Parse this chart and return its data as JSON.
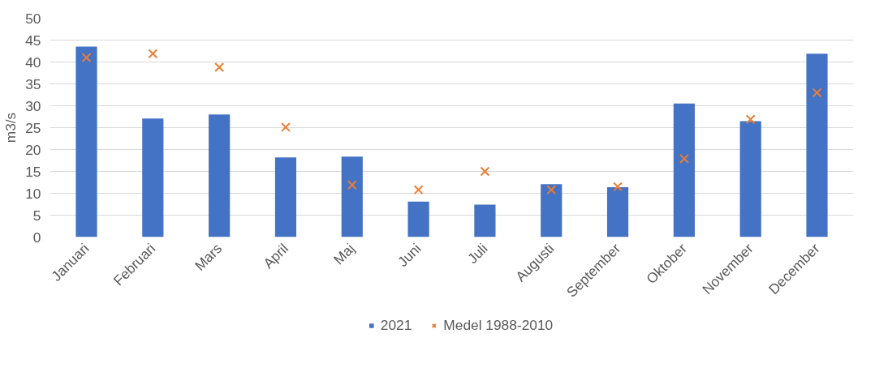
{
  "chart_data": {
    "type": "bar",
    "ylabel": "m3/s",
    "categories": [
      "Januari",
      "Februari",
      "Mars",
      "April",
      "Maj",
      "Juni",
      "Juli",
      "Augusti",
      "September",
      "Oktober",
      "November",
      "December"
    ],
    "series": [
      {
        "name": "2021",
        "color": "#4472c4",
        "values": [
          43.5,
          27.1,
          28.0,
          18.2,
          18.4,
          8.1,
          7.4,
          12.1,
          11.4,
          30.5,
          26.5,
          41.9
        ]
      },
      {
        "name": "Medel 1988-2010",
        "type": "scatter",
        "color": "#ed7d31",
        "marker": "cross",
        "values": [
          41.0,
          41.9,
          38.8,
          25.1,
          11.9,
          10.8,
          15.0,
          10.8,
          11.5,
          17.9,
          26.9,
          33.0
        ]
      }
    ],
    "ylim": [
      0,
      50
    ],
    "yticks": [
      0,
      5,
      10,
      15,
      20,
      25,
      30,
      35,
      40,
      45,
      50
    ],
    "grid": "y",
    "legend": "bottom"
  }
}
